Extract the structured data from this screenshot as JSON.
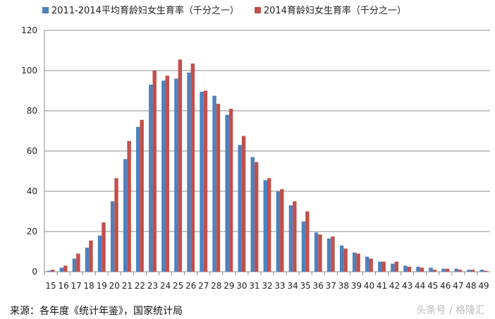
{
  "chart_data": {
    "type": "bar",
    "categories": [
      "15",
      "16",
      "17",
      "18",
      "19",
      "20",
      "21",
      "22",
      "23",
      "24",
      "25",
      "26",
      "27",
      "28",
      "29",
      "30",
      "31",
      "32",
      "33",
      "34",
      "35",
      "36",
      "37",
      "38",
      "39",
      "40",
      "41",
      "42",
      "43",
      "44",
      "45",
      "46",
      "47",
      "48",
      "49"
    ],
    "series": [
      {
        "name": "2011-2014平均育龄妇女生育率（千分之一）",
        "color": "#4f81bd",
        "values": [
          0.5,
          2,
          6.5,
          12,
          18,
          35,
          56,
          72,
          93,
          95,
          96,
          99,
          89.5,
          87.5,
          78,
          63,
          57,
          45.5,
          40,
          33,
          25,
          19.5,
          16.5,
          13,
          9.5,
          7.5,
          5,
          4,
          3,
          2.5,
          2,
          1.5,
          1.5,
          1,
          1
        ]
      },
      {
        "name": "2014育龄妇女生育率（千分之一）",
        "color": "#c0504d",
        "values": [
          1,
          3,
          9,
          15.5,
          24.5,
          46.5,
          65,
          75.5,
          100,
          97.5,
          105.5,
          103.5,
          90,
          83.5,
          81,
          67.5,
          54.5,
          46.5,
          41,
          35,
          30,
          18.5,
          17.5,
          11.5,
          9,
          6.5,
          5,
          5,
          2.5,
          2,
          1,
          1.5,
          1,
          1,
          0.5
        ]
      }
    ],
    "ylim": [
      0,
      120
    ],
    "yticks": [
      0,
      20,
      40,
      60,
      80,
      100,
      120
    ],
    "grid": true,
    "legend": "top"
  },
  "source": "来源：各年度《统计年鉴》，国家统计局",
  "watermark": "头条号 / 格隆汇"
}
